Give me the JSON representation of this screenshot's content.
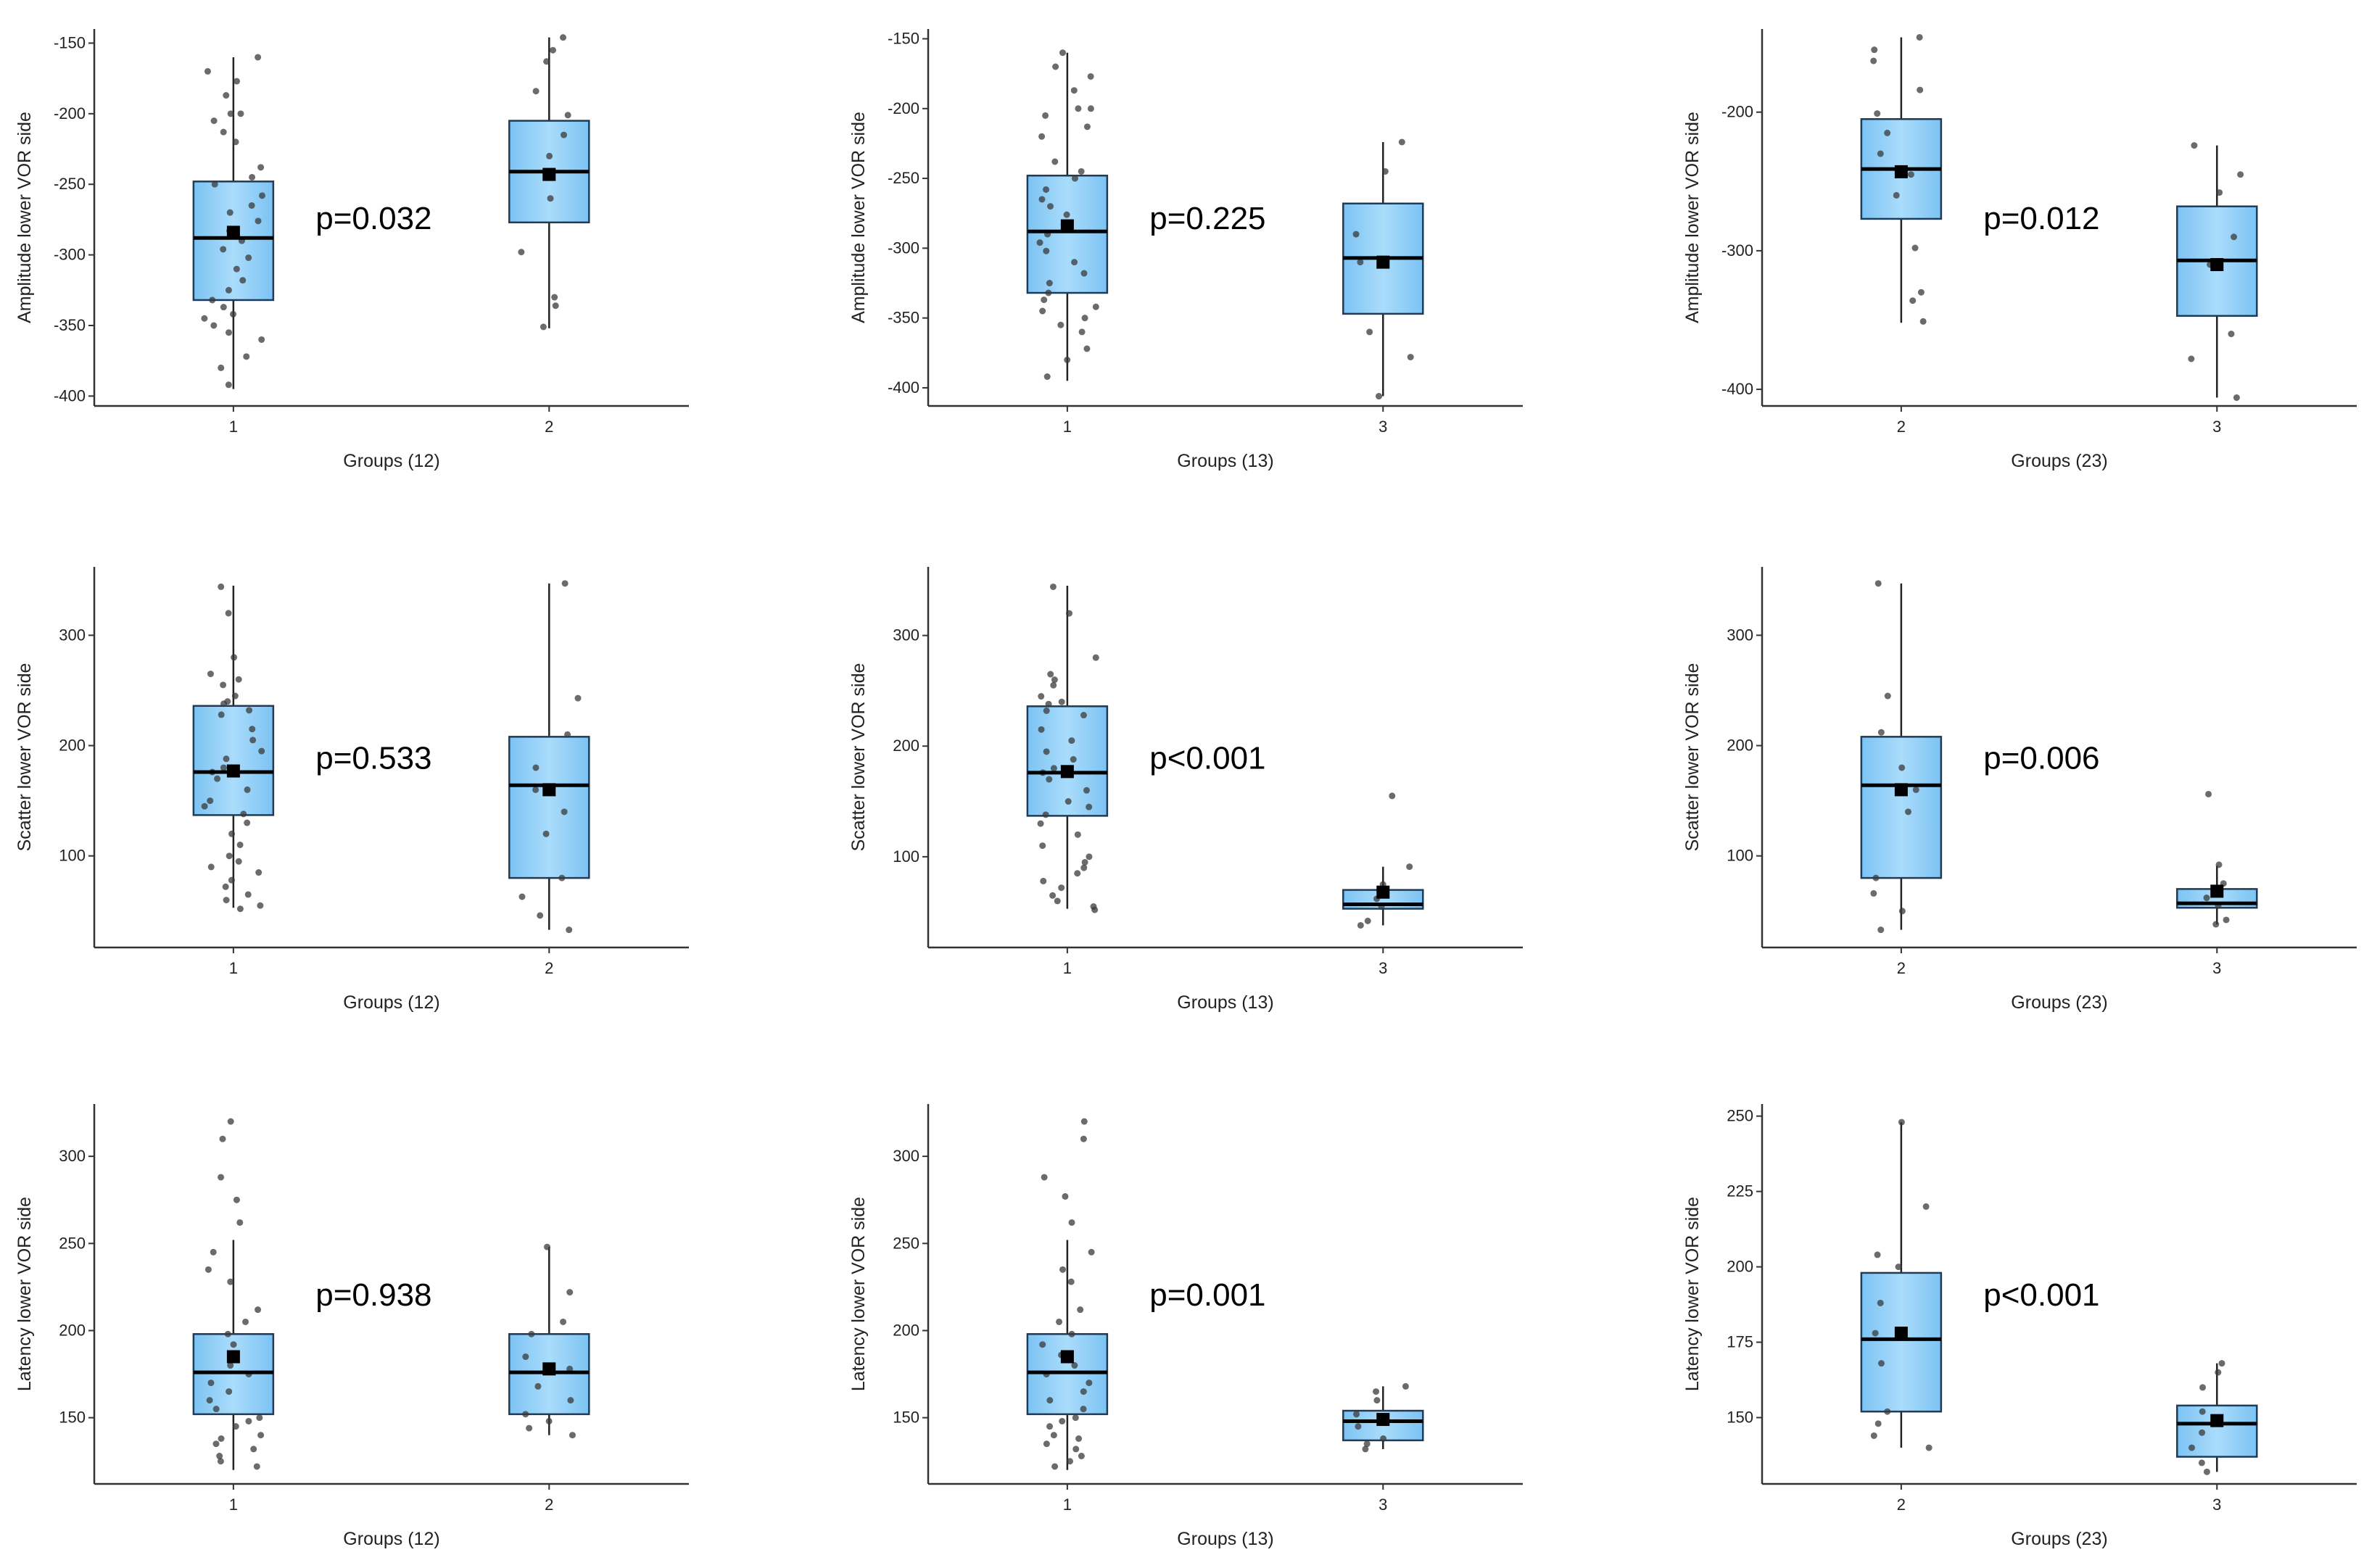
{
  "chart_data": [
    {
      "type": "box",
      "ylabel": "Amplitude lower VOR side",
      "xlabel": "Groups (12)",
      "categories": [
        "1",
        "2"
      ],
      "yticks": [
        -150,
        -200,
        -250,
        -300,
        -350,
        -400
      ],
      "ylim": [
        -407,
        -140
      ],
      "p_value": "p=0.032",
      "boxes": [
        {
          "group": "1",
          "q1": -332,
          "median": -288,
          "q3": -248,
          "whisker_low": -395,
          "whisker_high": -160,
          "mean": -284,
          "points": [
            -160,
            -170,
            -177,
            -187,
            -200,
            -200,
            -205,
            -213,
            -220,
            -238,
            -245,
            -250,
            -258,
            -265,
            -270,
            -276,
            -283,
            -290,
            -296,
            -302,
            -310,
            -318,
            -325,
            -332,
            -337,
            -342,
            -345,
            -350,
            -355,
            -360,
            -372,
            -380,
            -392
          ]
        },
        {
          "group": "2",
          "q1": -277,
          "median": -241,
          "q3": -205,
          "whisker_low": -352,
          "whisker_high": -146,
          "mean": -243,
          "points": [
            -146,
            -155,
            -163,
            -184,
            -201,
            -215,
            -230,
            -245,
            -260,
            -298,
            -330,
            -336,
            -351
          ]
        }
      ]
    },
    {
      "type": "box",
      "ylabel": "Amplitude lower VOR side",
      "xlabel": "Groups (13)",
      "categories": [
        "1",
        "3"
      ],
      "yticks": [
        -150,
        -200,
        -250,
        -300,
        -350,
        -400
      ],
      "ylim": [
        -413,
        -143
      ],
      "p_value": "p=0.225",
      "boxes": [
        {
          "group": "1",
          "q1": -332,
          "median": -288,
          "q3": -248,
          "whisker_low": -395,
          "whisker_high": -160,
          "mean": -284,
          "points": [
            -160,
            -170,
            -177,
            -187,
            -200,
            -200,
            -205,
            -213,
            -220,
            -238,
            -245,
            -250,
            -258,
            -265,
            -270,
            -276,
            -283,
            -290,
            -296,
            -302,
            -310,
            -318,
            -325,
            -332,
            -337,
            -342,
            -345,
            -350,
            -355,
            -360,
            -372,
            -380,
            -392
          ]
        },
        {
          "group": "3",
          "q1": -347,
          "median": -307,
          "q3": -268,
          "whisker_low": -406,
          "whisker_high": -224,
          "mean": -310,
          "points": [
            -224,
            -245,
            -290,
            -310,
            -360,
            -378,
            -406
          ]
        }
      ]
    },
    {
      "type": "box",
      "ylabel": "Amplitude lower VOR side",
      "xlabel": "Groups (23)",
      "categories": [
        "2",
        "3"
      ],
      "yticks": [
        -200,
        -300,
        -400
      ],
      "ylim": [
        -412,
        -140
      ],
      "p_value": "p=0.012",
      "boxes": [
        {
          "group": "2",
          "q1": -277,
          "median": -241,
          "q3": -205,
          "whisker_low": -352,
          "whisker_high": -146,
          "mean": -243,
          "points": [
            -146,
            -155,
            -163,
            -184,
            -201,
            -215,
            -230,
            -245,
            -260,
            -298,
            -330,
            -336,
            -351
          ]
        },
        {
          "group": "3",
          "q1": -347,
          "median": -307,
          "q3": -268,
          "whisker_low": -406,
          "whisker_high": -224,
          "mean": -310,
          "points": [
            -224,
            -245,
            -258,
            -290,
            -310,
            -360,
            -378,
            -406
          ]
        }
      ]
    },
    {
      "type": "box",
      "ylabel": "Scatter lower VOR side",
      "xlabel": "Groups (12)",
      "categories": [
        "1",
        "2"
      ],
      "yticks": [
        100,
        200,
        300
      ],
      "ylim": [
        17,
        362
      ],
      "p_value": "p=0.533",
      "boxes": [
        {
          "group": "1",
          "q1": 137,
          "median": 176,
          "q3": 236,
          "whisker_low": 53,
          "whisker_high": 345,
          "mean": 177,
          "points": [
            344,
            320,
            280,
            265,
            260,
            255,
            245,
            240,
            238,
            232,
            228,
            215,
            205,
            195,
            188,
            180,
            176,
            170,
            160,
            150,
            145,
            138,
            130,
            120,
            110,
            100,
            95,
            90,
            85,
            78,
            72,
            65,
            60,
            55,
            52
          ]
        },
        {
          "group": "2",
          "q1": 80,
          "median": 164,
          "q3": 208,
          "whisker_low": 33,
          "whisker_high": 347,
          "mean": 160,
          "points": [
            347,
            243,
            210,
            180,
            160,
            140,
            120,
            80,
            63,
            46,
            33
          ]
        }
      ]
    },
    {
      "type": "box",
      "ylabel": "Scatter lower VOR side",
      "xlabel": "Groups (13)",
      "categories": [
        "1",
        "3"
      ],
      "yticks": [
        100,
        200,
        300
      ],
      "ylim": [
        18,
        362
      ],
      "p_value": "p<0.001",
      "boxes": [
        {
          "group": "1",
          "q1": 137,
          "median": 176,
          "q3": 236,
          "whisker_low": 53,
          "whisker_high": 345,
          "mean": 177,
          "points": [
            344,
            320,
            280,
            265,
            260,
            255,
            245,
            240,
            238,
            232,
            228,
            215,
            205,
            195,
            188,
            180,
            176,
            170,
            160,
            150,
            145,
            138,
            130,
            120,
            110,
            100,
            95,
            90,
            85,
            78,
            72,
            65,
            60,
            55,
            52
          ]
        },
        {
          "group": "3",
          "q1": 53,
          "median": 57,
          "q3": 70,
          "whisker_low": 38,
          "whisker_high": 91,
          "mean": 68,
          "points": [
            155,
            91,
            75,
            62,
            55,
            42,
            38
          ]
        }
      ]
    },
    {
      "type": "box",
      "ylabel": "Scatter lower VOR side",
      "xlabel": "Groups (23)",
      "categories": [
        "2",
        "3"
      ],
      "yticks": [
        100,
        200,
        300
      ],
      "ylim": [
        17,
        362
      ],
      "p_value": "p=0.006",
      "boxes": [
        {
          "group": "2",
          "q1": 80,
          "median": 164,
          "q3": 208,
          "whisker_low": 33,
          "whisker_high": 347,
          "mean": 160,
          "points": [
            347,
            245,
            212,
            180,
            160,
            140,
            80,
            66,
            50,
            33
          ]
        },
        {
          "group": "3",
          "q1": 53,
          "median": 57,
          "q3": 70,
          "whisker_low": 38,
          "whisker_high": 91,
          "mean": 68,
          "points": [
            156,
            92,
            75,
            62,
            55,
            42,
            38
          ]
        }
      ]
    },
    {
      "type": "box",
      "ylabel": "Latency lower VOR side",
      "xlabel": "Groups (12)",
      "categories": [
        "1",
        "2"
      ],
      "yticks": [
        150,
        200,
        250,
        300
      ],
      "ylim": [
        112,
        330
      ],
      "p_value": "p=0.938",
      "boxes": [
        {
          "group": "1",
          "q1": 152,
          "median": 176,
          "q3": 198,
          "whisker_low": 120,
          "whisker_high": 252,
          "mean": 185,
          "points": [
            320,
            310,
            288,
            275,
            262,
            245,
            235,
            228,
            212,
            205,
            198,
            192,
            186,
            180,
            175,
            170,
            165,
            160,
            155,
            150,
            148,
            145,
            140,
            138,
            135,
            132,
            128,
            125,
            122
          ]
        },
        {
          "group": "2",
          "q1": 152,
          "median": 176,
          "q3": 198,
          "whisker_low": 140,
          "whisker_high": 248,
          "mean": 178,
          "points": [
            248,
            222,
            205,
            198,
            185,
            178,
            168,
            160,
            152,
            148,
            144,
            140
          ]
        }
      ]
    },
    {
      "type": "box",
      "ylabel": "Latency lower VOR side",
      "xlabel": "Groups (13)",
      "categories": [
        "1",
        "3"
      ],
      "yticks": [
        150,
        200,
        250,
        300
      ],
      "ylim": [
        112,
        330
      ],
      "p_value": "p=0.001",
      "boxes": [
        {
          "group": "1",
          "q1": 152,
          "median": 176,
          "q3": 198,
          "whisker_low": 120,
          "whisker_high": 252,
          "mean": 185,
          "points": [
            320,
            310,
            288,
            277,
            262,
            245,
            235,
            228,
            212,
            205,
            198,
            192,
            186,
            180,
            175,
            170,
            165,
            160,
            155,
            150,
            148,
            145,
            140,
            138,
            135,
            132,
            128,
            125,
            122
          ]
        },
        {
          "group": "3",
          "q1": 137,
          "median": 148,
          "q3": 154,
          "whisker_low": 132,
          "whisker_high": 168,
          "mean": 149,
          "points": [
            168,
            165,
            160,
            152,
            145,
            138,
            135,
            132
          ]
        }
      ]
    },
    {
      "type": "box",
      "ylabel": "Latency lower VOR side",
      "xlabel": "Groups (23)",
      "categories": [
        "2",
        "3"
      ],
      "yticks": [
        150,
        175,
        200,
        225,
        250
      ],
      "ylim": [
        128,
        254
      ],
      "p_value": "p<0.001",
      "boxes": [
        {
          "group": "2",
          "q1": 152,
          "median": 176,
          "q3": 198,
          "whisker_low": 140,
          "whisker_high": 248,
          "mean": 178,
          "points": [
            248,
            220,
            204,
            200,
            188,
            178,
            168,
            152,
            148,
            144,
            140
          ]
        },
        {
          "group": "3",
          "q1": 137,
          "median": 148,
          "q3": 154,
          "whisker_low": 132,
          "whisker_high": 168,
          "mean": 149,
          "points": [
            168,
            165,
            160,
            152,
            145,
            140,
            135,
            132
          ]
        }
      ]
    }
  ]
}
